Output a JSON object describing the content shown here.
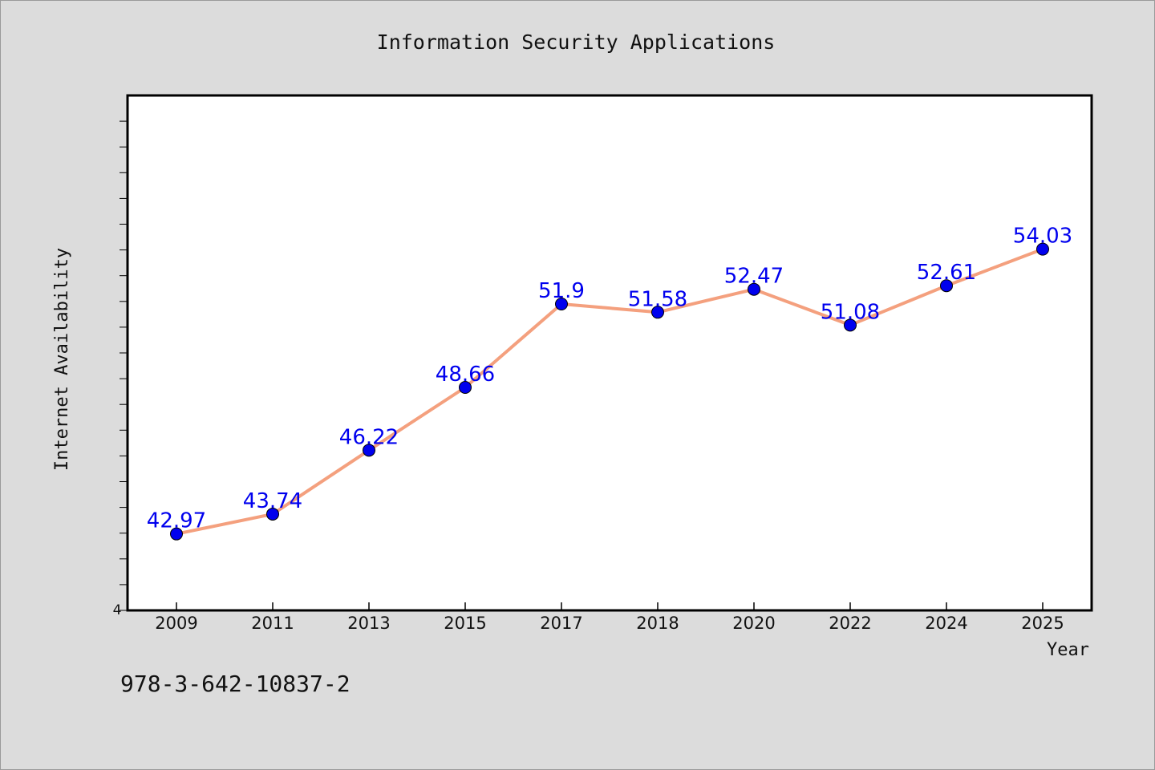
{
  "chart_data": {
    "type": "line",
    "title": "Information Security Applications",
    "xlabel": "Year",
    "ylabel": "Internet Availability",
    "categories": [
      "2009",
      "2011",
      "2013",
      "2015",
      "2017",
      "2018",
      "2020",
      "2022",
      "2024",
      "2025"
    ],
    "series": [
      {
        "values": [
          42.97,
          43.74,
          46.22,
          48.66,
          51.9,
          51.58,
          52.47,
          51.08,
          52.61,
          54.03
        ]
      }
    ],
    "data_labels": [
      "42.97",
      "43.74",
      "46.22",
      "48.66",
      "51.9",
      "51.58",
      "52.47",
      "51.08",
      "52.61",
      "54.03"
    ],
    "y_tick_label": "4",
    "ylim": [
      40,
      60
    ],
    "grid": false,
    "line_color": "#f4a07e",
    "marker_color": "#0000ee",
    "label_color": "#0000ee"
  },
  "footer": {
    "isbn": "978-3-642-10837-2"
  }
}
